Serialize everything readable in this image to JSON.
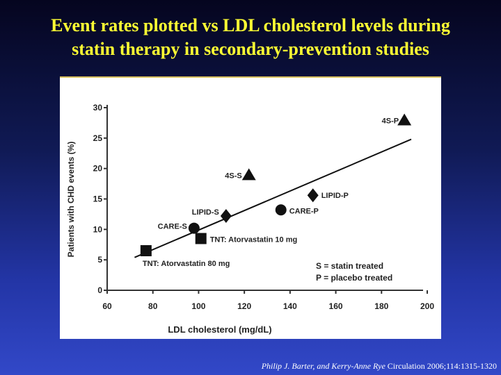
{
  "title_lines": [
    "Event rates plotted vs LDL cholesterol levels during",
    "statin therapy in secondary-prevention studies"
  ],
  "citation": {
    "authors": "Philip J. Barter, and Kerry-Anne Rye",
    "source": " Circulation 2006;114:1315-1320"
  },
  "chart_data": {
    "type": "scatter",
    "title": "",
    "xlabel": "LDL cholesterol (mg/dL)",
    "ylabel": "Patients with CHD events (%)",
    "xlim": [
      60,
      200
    ],
    "ylim": [
      0,
      30
    ],
    "xticks": [
      60,
      80,
      100,
      120,
      140,
      160,
      180,
      200
    ],
    "yticks": [
      0,
      5,
      10,
      15,
      20,
      25,
      30
    ],
    "grid": false,
    "points": [
      {
        "label": "4S-P",
        "x": 190,
        "y": 28,
        "marker": "triangle"
      },
      {
        "label": "4S-S",
        "x": 122,
        "y": 19,
        "marker": "triangle"
      },
      {
        "label": "LIPID-P",
        "x": 150,
        "y": 15.6,
        "marker": "diamond"
      },
      {
        "label": "CARE-P",
        "x": 136,
        "y": 13.2,
        "marker": "circle"
      },
      {
        "label": "LIPID-S",
        "x": 112,
        "y": 12.2,
        "marker": "diamond"
      },
      {
        "label": "CARE-S",
        "x": 98,
        "y": 10.2,
        "marker": "circle"
      },
      {
        "label": "TNT: Atorvastatin 10 mg",
        "x": 101,
        "y": 8.5,
        "marker": "square"
      },
      {
        "label": "TNT: Atorvastatin 80 mg",
        "x": 77,
        "y": 6.5,
        "marker": "square"
      }
    ],
    "trendline": {
      "x": [
        72,
        193
      ],
      "y": [
        5.4,
        24.8
      ]
    },
    "legend": {
      "position": "bottom-right",
      "entries": [
        "S = statin treated",
        "P = placebo treated"
      ]
    }
  }
}
